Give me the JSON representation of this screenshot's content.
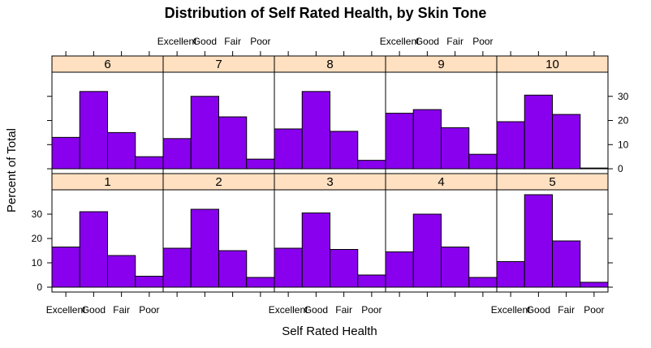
{
  "chart_data": {
    "type": "bar",
    "title": "Distribution of Self Rated Health, by Skin Tone",
    "xlabel": "Self Rated Health",
    "ylabel": "Percent of Total",
    "categories": [
      "Excellent",
      "Good",
      "Fair",
      "Poor"
    ],
    "y_ticks": [
      0,
      10,
      20,
      30
    ],
    "ylim": [
      -2,
      40
    ],
    "layout": {
      "columns": 5,
      "rows": 2
    },
    "colors": {
      "bar_fill": "#8800ee",
      "strip_fill": "#ffe0c0",
      "border": "#000000"
    },
    "panels": [
      {
        "label": "6",
        "values": [
          13,
          32,
          15,
          5
        ]
      },
      {
        "label": "7",
        "values": [
          12.5,
          30,
          21.5,
          4
        ]
      },
      {
        "label": "8",
        "values": [
          16.5,
          32,
          15.5,
          3.5
        ]
      },
      {
        "label": "9",
        "values": [
          23,
          24.5,
          17,
          6
        ]
      },
      {
        "label": "10",
        "values": [
          19.5,
          30.5,
          22.5,
          0.3
        ]
      },
      {
        "label": "1",
        "values": [
          16.5,
          31,
          13,
          4.5
        ]
      },
      {
        "label": "2",
        "values": [
          16,
          32,
          15,
          4
        ]
      },
      {
        "label": "3",
        "values": [
          16,
          30.5,
          15.5,
          5
        ]
      },
      {
        "label": "4",
        "values": [
          14.5,
          30,
          16.5,
          4
        ]
      },
      {
        "label": "5",
        "values": [
          10.5,
          38,
          19,
          2
        ]
      }
    ]
  }
}
